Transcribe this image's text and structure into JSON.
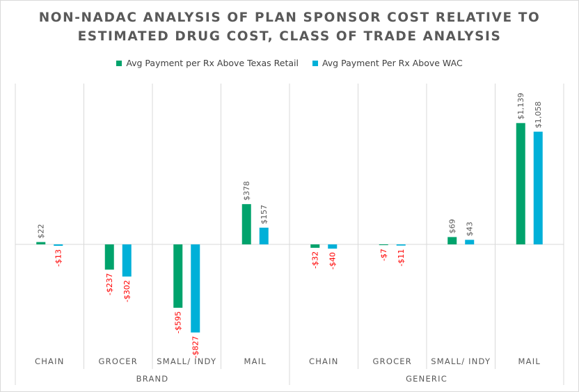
{
  "chart_data": {
    "type": "bar",
    "title_lines": [
      "NON-NADAC ANALYSIS OF PLAN SPONSOR COST RELATIVE TO",
      "ESTIMATED DRUG COST, CLASS OF TRADE ANALYSIS"
    ],
    "categories": [
      "CHAIN",
      "GROCER",
      "SMALL/ INDY",
      "MAIL",
      "CHAIN",
      "GROCER",
      "SMALL/ INDY",
      "MAIL"
    ],
    "groups": [
      {
        "label": "BRAND",
        "start": 0,
        "end": 3
      },
      {
        "label": "GENERIC",
        "start": 4,
        "end": 7
      }
    ],
    "series": [
      {
        "name": "Avg Payment per Rx Above Texas Retail",
        "color": "#00a36c",
        "values": [
          22,
          -237,
          -595,
          378,
          -32,
          -7,
          69,
          1139
        ],
        "labels": [
          "$22",
          "-$237",
          "-$595",
          "$378",
          "-$32",
          "-$7",
          "$69",
          "$1,139"
        ]
      },
      {
        "name": "Avg Payment Per Rx Above WAC",
        "color": "#00b0d8",
        "values": [
          -13,
          -302,
          -827,
          157,
          -40,
          -11,
          43,
          1058
        ],
        "labels": [
          "-$13",
          "-$302",
          "-$827",
          "$157",
          "-$40",
          "-$11",
          "$43",
          "$1,058"
        ]
      }
    ],
    "ylim": [
      -1000,
      1500
    ],
    "grid": false,
    "legend_position": "top",
    "negative_label_color": "#ff0000",
    "positive_label_color": "#595959"
  }
}
